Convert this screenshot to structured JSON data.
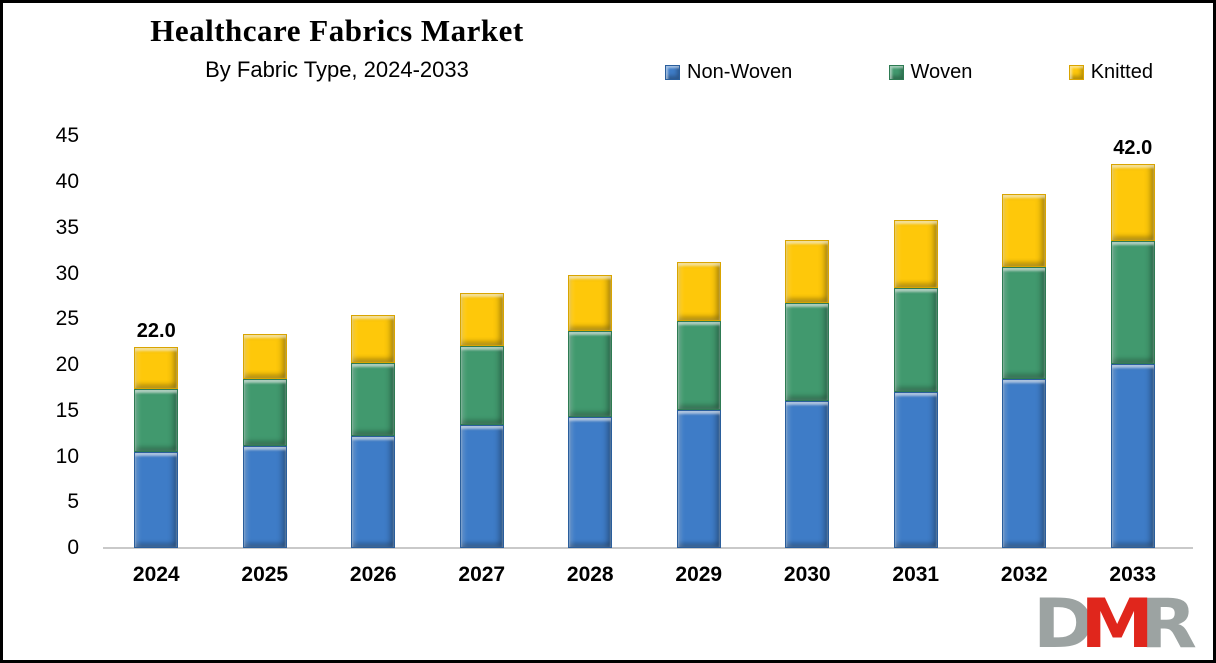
{
  "header": {
    "title": "Healthcare Fabrics Market",
    "subtitle": "By Fabric Type, 2024-2033"
  },
  "chart_data": {
    "type": "bar",
    "stacked": true,
    "title": "Healthcare Fabrics Market",
    "subtitle": "By Fabric Type, 2024-2033",
    "categories": [
      "2024",
      "2025",
      "2026",
      "2027",
      "2028",
      "2029",
      "2030",
      "2031",
      "2032",
      "2033"
    ],
    "series": [
      {
        "name": "Non-Woven",
        "color": "#3E7CC7",
        "edge": "#2A5E9C",
        "values": [
          10.5,
          11.2,
          12.2,
          13.4,
          14.3,
          15.1,
          16.1,
          17.1,
          18.5,
          20.1
        ]
      },
      {
        "name": "Woven",
        "color": "#41996E",
        "edge": "#2E7B53",
        "values": [
          6.9,
          7.3,
          8.0,
          8.7,
          9.4,
          9.7,
          10.7,
          11.3,
          12.2,
          13.4
        ]
      },
      {
        "name": "Knitted",
        "color": "#FEC80A",
        "edge": "#D9A400",
        "values": [
          4.6,
          4.9,
          5.3,
          5.8,
          6.1,
          6.5,
          6.9,
          7.5,
          8.0,
          8.5
        ]
      }
    ],
    "totals": [
      22.0,
      23.4,
      25.5,
      27.9,
      29.8,
      31.3,
      33.7,
      35.9,
      38.7,
      42.0
    ],
    "bar_labels": {
      "2024": "22.0",
      "2033": "42.0"
    },
    "ylim": [
      0,
      45
    ],
    "yticks": [
      0,
      5,
      10,
      15,
      20,
      25,
      30,
      35,
      40,
      45
    ],
    "grid": false,
    "legend_position": "top-right",
    "axis_line_color": "#c9c9c9"
  },
  "logo": {
    "letters": [
      {
        "char": "D",
        "color": "#9CA3A2"
      },
      {
        "char": "M",
        "color": "#E0261C"
      },
      {
        "char": "R",
        "color": "#9CA3A2"
      }
    ]
  }
}
